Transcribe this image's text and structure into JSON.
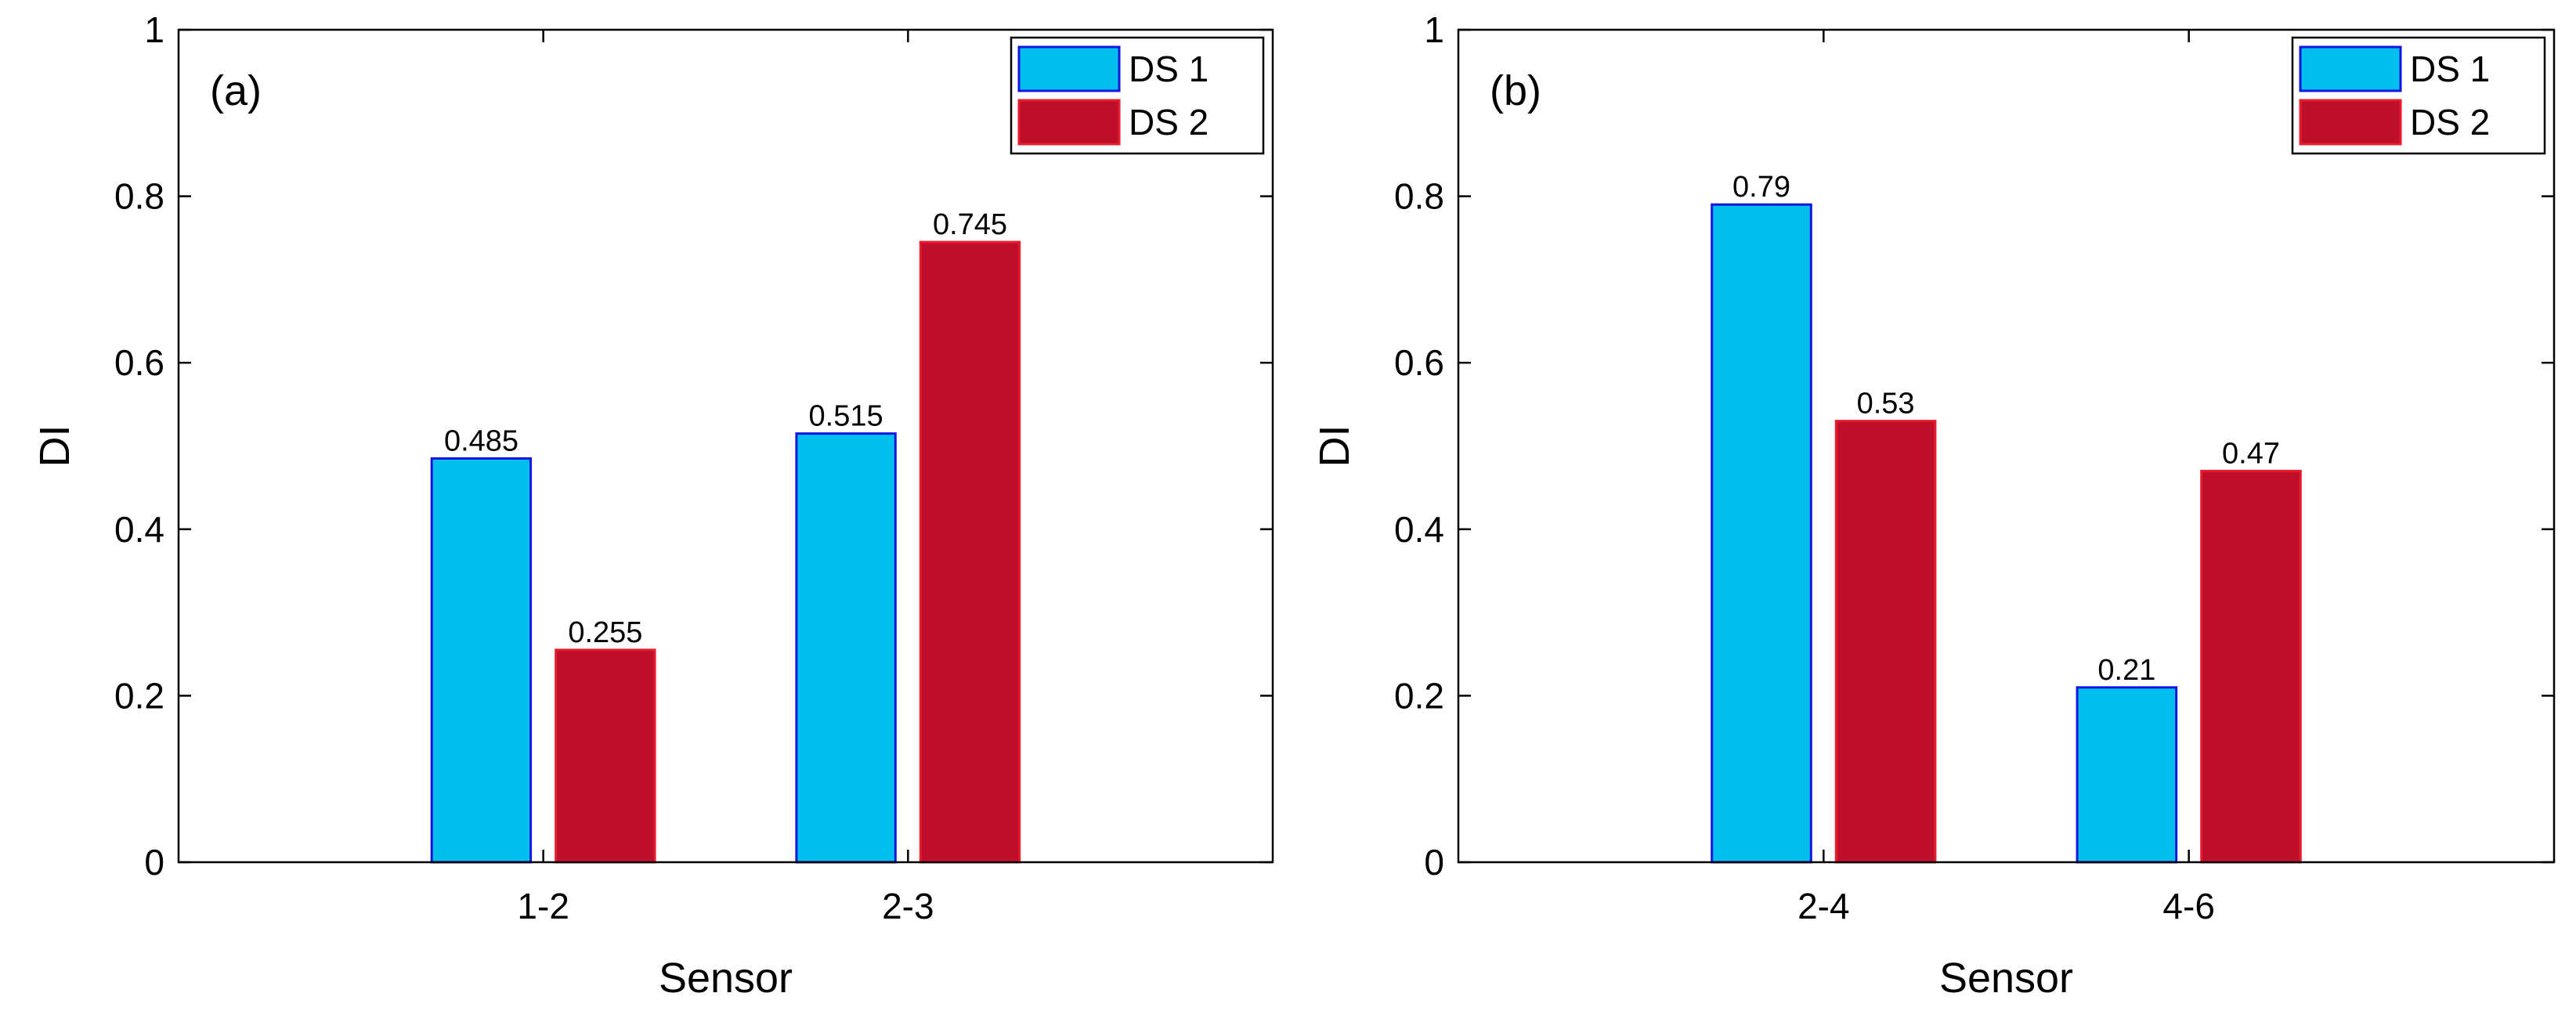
{
  "chart_data": [
    {
      "type": "bar",
      "panel_label": "(a)",
      "categories": [
        "1-2",
        "2-3"
      ],
      "series": [
        {
          "name": "DS 1",
          "values": [
            0.485,
            0.515
          ],
          "labels": [
            "0.485",
            "0.515"
          ]
        },
        {
          "name": "DS 2",
          "values": [
            0.255,
            0.745
          ],
          "labels": [
            "0.255",
            "0.745"
          ]
        }
      ],
      "xlabel": "Sensor",
      "ylabel": "DI",
      "ylim": [
        0,
        1
      ],
      "yticks": [
        "0",
        "0.2",
        "0.4",
        "0.6",
        "0.8",
        "1"
      ],
      "legend_position": "top-right"
    },
    {
      "type": "bar",
      "panel_label": "(b)",
      "categories": [
        "2-4",
        "4-6"
      ],
      "series": [
        {
          "name": "DS 1",
          "values": [
            0.79,
            0.21
          ],
          "labels": [
            "0.79",
            "0.21"
          ]
        },
        {
          "name": "DS 2",
          "values": [
            0.53,
            0.47
          ],
          "labels": [
            "0.53",
            "0.47"
          ]
        }
      ],
      "xlabel": "Sensor",
      "ylabel": "DI",
      "ylim": [
        0,
        1
      ],
      "yticks": [
        "0",
        "0.2",
        "0.4",
        "0.6",
        "0.8",
        "1"
      ],
      "legend_position": "top-right"
    }
  ],
  "colors": {
    "ds1_fill": "#00BEEE",
    "ds1_edge": "#1515E0",
    "ds2_fill": "#BE0E2C",
    "ds2_edge": "#E81C2C",
    "axis": "#000000"
  }
}
